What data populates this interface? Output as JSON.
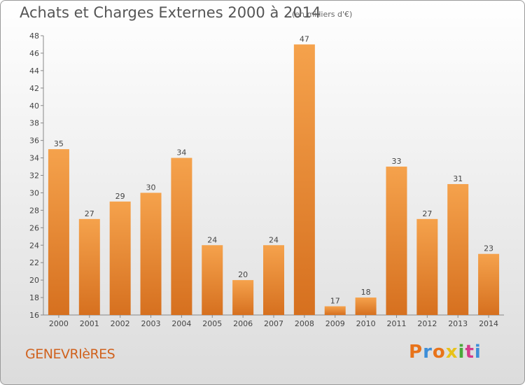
{
  "chart_data": {
    "type": "bar",
    "title": "Achats et Charges Externes 2000 à 2014",
    "subtitle": "(en milliers d'€)",
    "categories": [
      "2000",
      "2001",
      "2002",
      "2003",
      "2004",
      "2005",
      "2006",
      "2007",
      "2008",
      "2009",
      "2010",
      "2011",
      "2012",
      "2013",
      "2014"
    ],
    "values": [
      35,
      27,
      29,
      30,
      34,
      24,
      20,
      24,
      47,
      17,
      18,
      33,
      27,
      31,
      23
    ],
    "ylim": [
      16,
      48
    ],
    "yticks": [
      16,
      18,
      20,
      22,
      24,
      26,
      28,
      30,
      32,
      34,
      36,
      38,
      40,
      42,
      44,
      46,
      48
    ],
    "xlabel": "",
    "ylabel": "",
    "grid": false,
    "bar_color_top": "#f5a24c",
    "bar_color_bottom": "#d6701f"
  },
  "footer": {
    "town": "GENEVRIèRES",
    "brand": "Proxiti",
    "brand_colors": [
      "#e8731a",
      "#3d8ed8",
      "#e8731a",
      "#e8c21a",
      "#4aa83a",
      "#d43c8c",
      "#3d8ed8"
    ]
  }
}
